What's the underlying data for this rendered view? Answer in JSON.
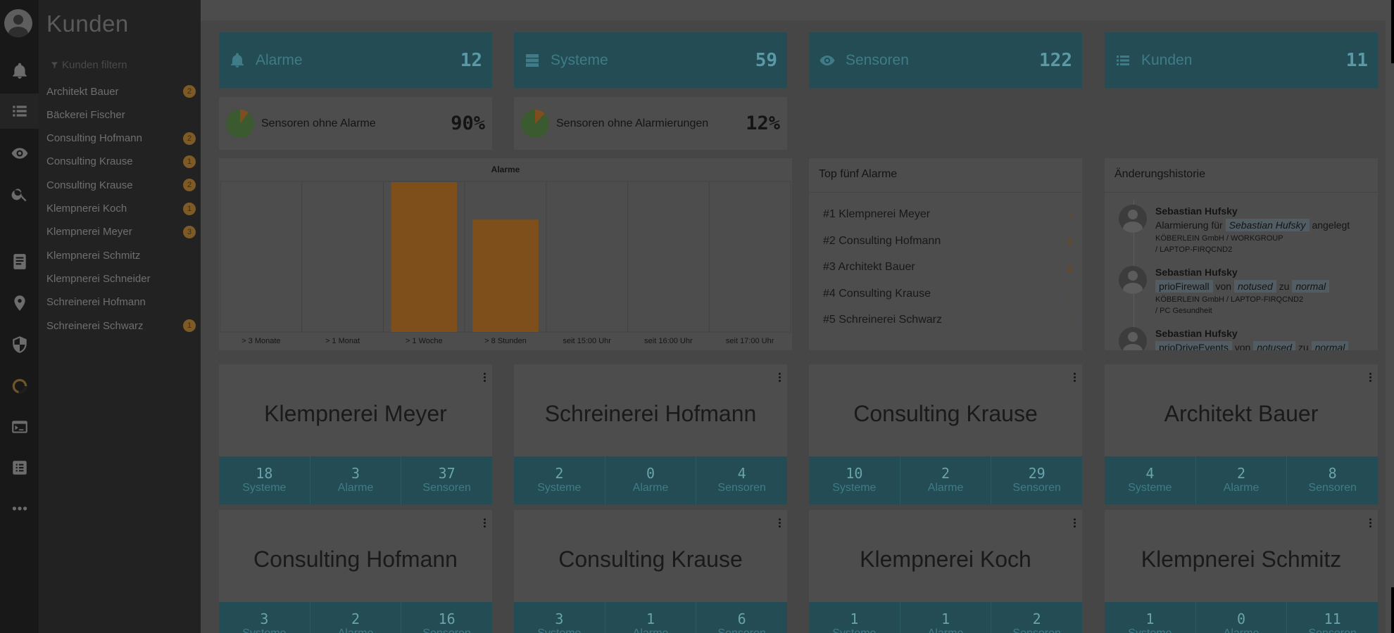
{
  "sidebar": {
    "title": "Kunden",
    "filter_placeholder": "Kunden filtern",
    "items": [
      {
        "label": "Architekt Bauer",
        "badge": "2"
      },
      {
        "label": "Bäckerei Fischer",
        "badge": ""
      },
      {
        "label": "Consulting Hofmann",
        "badge": "2"
      },
      {
        "label": "Consulting Krause",
        "badge": "1"
      },
      {
        "label": "Consulting Krause",
        "badge": "2"
      },
      {
        "label": "Klempnerei Koch",
        "badge": "1"
      },
      {
        "label": "Klempnerei Meyer",
        "badge": "3"
      },
      {
        "label": "Klempnerei Schmitz",
        "badge": ""
      },
      {
        "label": "Klempnerei Schneider",
        "badge": ""
      },
      {
        "label": "Schreinerei Hofmann",
        "badge": ""
      },
      {
        "label": "Schreinerei Schwarz",
        "badge": "1"
      }
    ]
  },
  "rail": {
    "icons": [
      "bell-icon",
      "list-icon",
      "eye-icon",
      "search-icon",
      "book-icon",
      "location-pin-icon",
      "shield-icon",
      "ring-icon",
      "terminal-icon",
      "list-alt-icon",
      "more-icon"
    ],
    "active": "list-icon"
  },
  "stats": [
    {
      "label": "Alarme",
      "value": "12",
      "icon": "bell-icon"
    },
    {
      "label": "Systeme",
      "value": "59",
      "icon": "server-icon"
    },
    {
      "label": "Sensoren",
      "value": "122",
      "icon": "eye-icon"
    },
    {
      "label": "Kunden",
      "value": "11",
      "icon": "list-icon"
    }
  ],
  "percent_cards": [
    {
      "label": "Sensoren ohne Alarme",
      "value": "90%"
    },
    {
      "label": "Sensoren ohne Alarmierungen",
      "value": "12%"
    }
  ],
  "chart_data": {
    "type": "bar",
    "title": "Alarme",
    "categories": [
      "> 3 Monate",
      "> 1 Monat",
      "> 1 Woche",
      "> 8 Stunden",
      "seit 15:00 Uhr",
      "seit 16:00 Uhr",
      "seit 17:00 Uhr"
    ],
    "values": [
      0,
      0,
      4,
      3,
      0,
      0,
      0
    ],
    "ylim": [
      0,
      4
    ],
    "grid": true,
    "color": "#7e4f1a"
  },
  "top_five": {
    "title": "Top fünf Alarme",
    "items": [
      {
        "rank": "#1",
        "name": "Klempnerei Meyer",
        "count": "3"
      },
      {
        "rank": "#2",
        "name": "Consulting Hofmann",
        "count": "2"
      },
      {
        "rank": "#3",
        "name": "Architekt Bauer",
        "count": "2"
      },
      {
        "rank": "#4",
        "name": "Consulting Krause",
        "count": "2"
      },
      {
        "rank": "#5",
        "name": "Schreinerei Schwarz",
        "count": "1"
      }
    ]
  },
  "history": {
    "title": "Änderungshistorie",
    "entries": [
      {
        "user": "Sebastian Hufsky",
        "pre": "Alarmierung für",
        "chip1": "Sebastian Hufsky",
        "post": "angelegt",
        "sub1": "KÖBERLEIN GmbH / WORKGROUP",
        "sub2": "/ LAPTOP-FIRQCND2"
      },
      {
        "user": "Sebastian Hufsky",
        "chip1": "prioFirewall",
        "mid1": "von",
        "chip2": "notused",
        "mid2": "zu",
        "chip3": "normal",
        "sub1": "KÖBERLEIN GmbH / LAPTOP-FIRQCND2",
        "sub2": "/ PC Gesundheit"
      },
      {
        "user": "Sebastian Hufsky",
        "chip1": "prioDriveEvents",
        "mid1": "von",
        "chip2": "notused",
        "mid2": "zu",
        "chip3": "normal"
      }
    ]
  },
  "customers": [
    {
      "name": "Klempnerei Meyer",
      "systeme": "18",
      "alarme": "3",
      "sensoren": "37"
    },
    {
      "name": "Schreinerei Hofmann",
      "systeme": "2",
      "alarme": "0",
      "sensoren": "4"
    },
    {
      "name": "Consulting Krause",
      "systeme": "10",
      "alarme": "2",
      "sensoren": "29"
    },
    {
      "name": "Architekt Bauer",
      "systeme": "4",
      "alarme": "2",
      "sensoren": "8"
    },
    {
      "name": "Consulting Hofmann",
      "systeme": "3",
      "alarme": "2",
      "sensoren": "16"
    },
    {
      "name": "Consulting Krause",
      "systeme": "3",
      "alarme": "1",
      "sensoren": "6"
    },
    {
      "name": "Klempnerei Koch",
      "systeme": "1",
      "alarme": "1",
      "sensoren": "2"
    },
    {
      "name": "Klempnerei Schmitz",
      "systeme": "1",
      "alarme": "0",
      "sensoren": "11"
    }
  ],
  "card_labels": {
    "systeme": "Systeme",
    "alarme": "Alarme",
    "sensoren": "Sensoren"
  }
}
